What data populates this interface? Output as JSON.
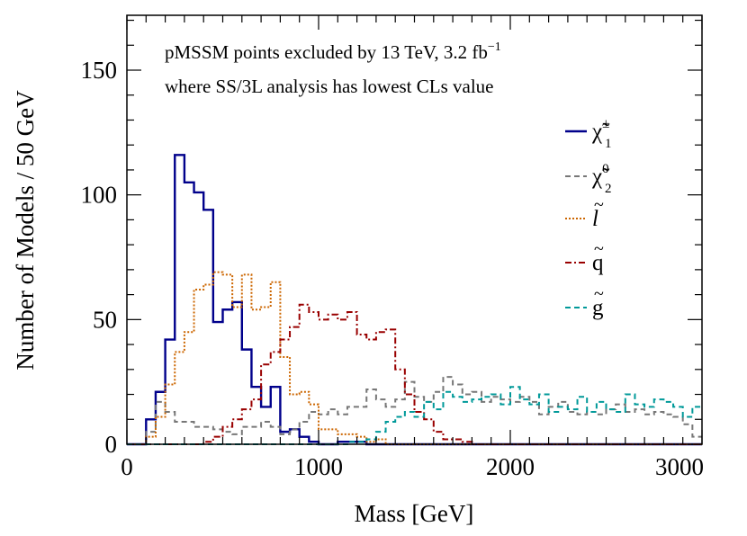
{
  "chart_data": {
    "type": "line",
    "subtype": "step-histogram",
    "xlabel": "Mass [GeV]",
    "ylabel": "Number of Models / 50 GeV",
    "xlim": [
      0,
      3000
    ],
    "ylim": [
      0,
      172
    ],
    "bin_width": 50,
    "x_ticks": [
      0,
      1000,
      2000,
      3000
    ],
    "y_ticks": [
      0,
      50,
      100,
      150
    ],
    "annotation": {
      "line1": "pMSSM points excluded by 13 TeV, 3.2 fb",
      "line1_sup": "−1",
      "line2": "where SS/3L analysis has lowest CLs value"
    },
    "legend_position": "top-right",
    "series": [
      {
        "name": "chargino1",
        "label_base": "χ̃",
        "label_sup": "±",
        "label_sub": "1",
        "color": "#00008b",
        "style": "solid",
        "values": [
          0,
          0,
          10,
          21,
          42,
          116,
          105,
          101,
          94,
          49,
          54,
          57,
          38,
          23,
          15,
          23,
          5,
          6,
          3,
          1,
          0,
          0,
          1,
          1,
          1,
          0,
          0,
          0,
          0,
          0,
          0,
          0,
          0,
          0,
          0,
          0,
          0,
          0,
          0,
          0,
          0,
          0,
          0,
          0,
          0,
          0,
          0,
          0,
          0,
          0,
          0,
          0,
          0,
          0,
          0,
          0,
          0,
          0,
          0,
          0
        ]
      },
      {
        "name": "neutralino2",
        "label_base": "χ̃",
        "label_sup": "0",
        "label_sub": "2",
        "color": "#777777",
        "style": "dashed",
        "values": [
          0,
          0,
          5,
          17,
          13,
          9,
          9,
          7,
          7,
          6,
          5,
          4,
          7,
          7,
          9,
          7,
          4,
          6,
          9,
          13,
          12,
          14,
          12,
          15,
          15,
          22,
          18,
          15,
          18,
          25,
          19,
          17,
          21,
          27,
          24,
          20,
          21,
          17,
          19,
          18,
          17,
          19,
          17,
          12,
          15,
          17,
          13,
          12,
          13,
          12,
          14,
          16,
          13,
          14,
          12,
          13,
          12,
          11,
          8,
          3
        ]
      },
      {
        "name": "slepton",
        "label_base": "l",
        "label_tilde": true,
        "color": "#cc6600",
        "style": "dotted",
        "values": [
          0,
          0,
          3,
          11,
          24,
          37,
          45,
          62,
          64,
          69,
          68,
          55,
          68,
          54,
          55,
          65,
          35,
          20,
          21,
          16,
          6,
          6,
          4,
          4,
          3,
          1,
          2,
          0,
          0,
          0,
          0,
          0,
          0,
          0,
          0,
          0,
          0,
          0,
          0,
          0,
          0,
          0,
          0,
          0,
          0,
          0,
          0,
          0,
          0,
          0,
          0,
          0,
          0,
          0,
          0,
          0,
          0,
          0,
          0,
          0
        ]
      },
      {
        "name": "squark",
        "label_base": "q",
        "label_tilde": true,
        "color": "#990000",
        "style": "dashdot",
        "values": [
          0,
          0,
          0,
          0,
          0,
          0,
          0,
          0,
          1,
          3,
          7,
          10,
          14,
          18,
          32,
          37,
          42,
          47,
          56,
          53,
          50,
          52,
          50,
          53,
          44,
          42,
          45,
          46,
          30,
          20,
          13,
          10,
          5,
          2,
          2,
          1,
          0,
          0,
          0,
          0,
          0,
          0,
          0,
          0,
          0,
          0,
          0,
          0,
          0,
          0,
          0,
          0,
          0,
          0,
          0,
          0,
          0,
          0,
          0,
          0
        ]
      },
      {
        "name": "gluino",
        "label_base": "g",
        "label_tilde": true,
        "color": "#009999",
        "style": "dashed",
        "values": [
          0,
          0,
          0,
          0,
          0,
          0,
          0,
          0,
          0,
          0,
          0,
          0,
          0,
          0,
          0,
          0,
          0,
          0,
          0,
          0,
          0,
          0,
          0,
          1,
          1,
          2,
          5,
          9,
          11,
          13,
          11,
          17,
          14,
          21,
          19,
          17,
          18,
          19,
          20,
          16,
          23,
          18,
          16,
          20,
          13,
          15,
          14,
          19,
          13,
          17,
          14,
          13,
          20,
          16,
          15,
          18,
          17,
          15,
          11,
          15
        ]
      }
    ]
  }
}
